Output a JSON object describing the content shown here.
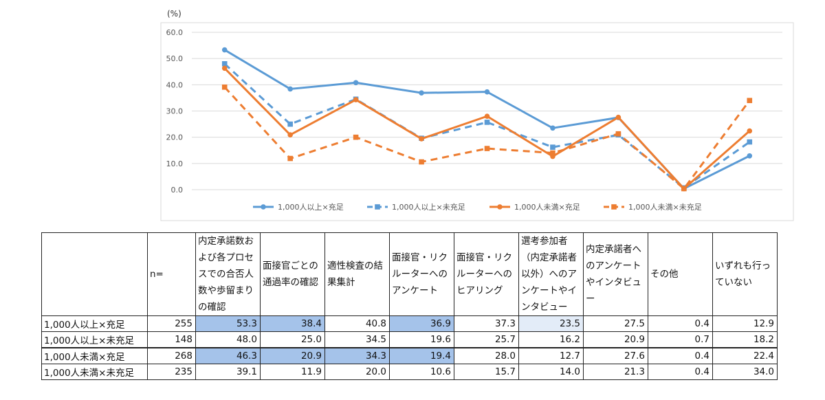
{
  "chart_data": {
    "type": "line",
    "unit_label": "(%)",
    "ylim": [
      0,
      60
    ],
    "yticks": [
      "0.0",
      "10.0",
      "20.0",
      "30.0",
      "40.0",
      "50.0",
      "60.0"
    ],
    "categories": [
      "内定承諾数および各プロセスでの合否人数や歩留まりの確認",
      "面接官ごとの通過率の確認",
      "適性検査の結果集計",
      "面接官・リクルーターへのアンケート",
      "面接官・リクルーターへのヒアリング",
      "選考参加者（内定承諾者以外）へのアンケートやインタビュー",
      "内定承諾者へのアンケートやインタビュー",
      "その他",
      "いずれも行っていない"
    ],
    "series": [
      {
        "name": "1,000人以上×充足",
        "color": "#5b9bd5",
        "dash": false,
        "marker": "circle",
        "values": [
          53.3,
          38.4,
          40.8,
          36.9,
          37.3,
          23.5,
          27.5,
          0.4,
          12.9
        ]
      },
      {
        "name": "1,000人以上×未充足",
        "color": "#5b9bd5",
        "dash": true,
        "marker": "square",
        "values": [
          48.0,
          25.0,
          34.5,
          19.6,
          25.7,
          16.2,
          20.9,
          0.7,
          18.2
        ]
      },
      {
        "name": "1,000人未満×充足",
        "color": "#ed7d31",
        "dash": false,
        "marker": "circle",
        "values": [
          46.3,
          20.9,
          34.3,
          19.4,
          28.0,
          12.7,
          27.6,
          0.4,
          22.4
        ]
      },
      {
        "name": "1,000人未満×未充足",
        "color": "#ed7d31",
        "dash": true,
        "marker": "square",
        "values": [
          39.1,
          11.9,
          20.0,
          10.6,
          15.7,
          14.0,
          21.3,
          0.4,
          34.0
        ]
      }
    ],
    "grid": true,
    "legend_position": "bottom"
  },
  "table": {
    "headers": [
      "",
      "n=",
      "内定承諾数および各プロセスでの合否人数や歩留まりの確認",
      "面接官ごとの通過率の確認",
      "適性検査の結果集計",
      "面接官・リクルーターへのアンケート",
      "面接官・リクルーターへのヒアリング",
      "選考参加者（内定承諾者以外）へのアンケートやインタビュー",
      "内定承諾者へのアンケートやインタビュー",
      "その他",
      "いずれも行っていない"
    ],
    "rows": [
      {
        "label": "1,000人以上×充足",
        "n": "255",
        "values": [
          "53.3",
          "38.4",
          "40.8",
          "36.9",
          "37.3",
          "23.5",
          "27.5",
          "0.4",
          "12.9"
        ],
        "highlight": [
          "strong",
          "strong",
          "",
          "strong",
          "",
          "light",
          "",
          "",
          ""
        ]
      },
      {
        "label": "1,000人以上×未充足",
        "n": "148",
        "values": [
          "48.0",
          "25.0",
          "34.5",
          "19.6",
          "25.7",
          "16.2",
          "20.9",
          "0.7",
          "18.2"
        ],
        "highlight": [
          "",
          "",
          "",
          "",
          "",
          "",
          "",
          "",
          ""
        ]
      },
      {
        "label": "1,000人未満×充足",
        "n": "268",
        "values": [
          "46.3",
          "20.9",
          "34.3",
          "19.4",
          "28.0",
          "12.7",
          "27.6",
          "0.4",
          "22.4"
        ],
        "highlight": [
          "strong",
          "strong",
          "strong",
          "strong",
          "",
          "",
          "",
          "",
          ""
        ]
      },
      {
        "label": "1,000人未満×未充足",
        "n": "235",
        "values": [
          "39.1",
          "11.9",
          "20.0",
          "10.6",
          "15.7",
          "14.0",
          "21.3",
          "0.4",
          "34.0"
        ],
        "highlight": [
          "",
          "",
          "",
          "",
          "",
          "",
          "",
          "",
          ""
        ]
      }
    ]
  }
}
